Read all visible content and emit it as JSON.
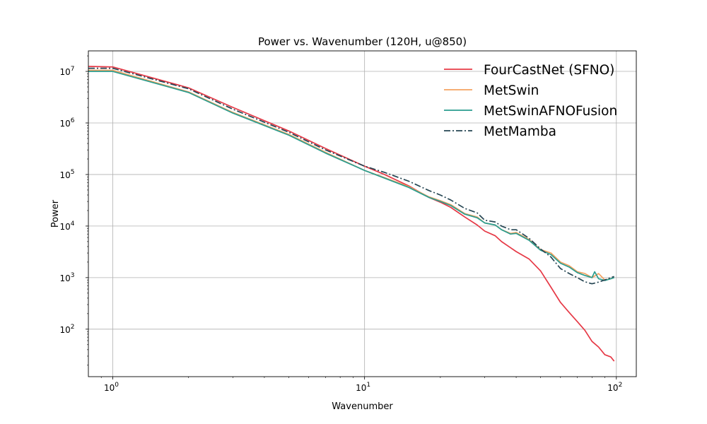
{
  "chart_data": {
    "type": "line",
    "title": "Power vs. Wavenumber (120H, u@850)",
    "xlabel": "Wavenumber",
    "ylabel": "Power",
    "xscale": "log",
    "yscale": "log",
    "xlim": [
      0.8,
      120
    ],
    "ylim": [
      12,
      25000000
    ],
    "grid": true,
    "legend_position": "top-right",
    "x_ticks": [
      {
        "value": 1,
        "base": "10",
        "exp": "0"
      },
      {
        "value": 10,
        "base": "10",
        "exp": "1"
      },
      {
        "value": 100,
        "base": "10",
        "exp": "2"
      }
    ],
    "y_ticks": [
      {
        "value": 100,
        "base": "10",
        "exp": "2"
      },
      {
        "value": 1000,
        "base": "10",
        "exp": "3"
      },
      {
        "value": 10000,
        "base": "10",
        "exp": "4"
      },
      {
        "value": 100000,
        "base": "10",
        "exp": "5"
      },
      {
        "value": 1000000,
        "base": "10",
        "exp": "6"
      },
      {
        "value": 10000000,
        "base": "10",
        "exp": "7"
      }
    ],
    "series": [
      {
        "name": "FourCastNet (SFNO)",
        "color": "#e63946",
        "dash": "solid",
        "x": [
          0.8,
          1,
          2,
          3,
          5,
          7,
          10,
          12,
          15,
          18,
          20,
          22,
          25,
          28,
          30,
          33,
          35,
          38,
          40,
          45,
          50,
          55,
          60,
          65,
          70,
          75,
          80,
          85,
          90,
          95,
          98
        ],
        "y": [
          12500000,
          12200000,
          4800000,
          2000000,
          700000,
          320000,
          145000,
          100000,
          60000,
          36000,
          29000,
          23000,
          15000,
          10500,
          8000,
          6500,
          5000,
          3800,
          3200,
          2300,
          1350,
          650,
          330,
          210,
          140,
          95,
          58,
          45,
          32,
          29,
          24
        ]
      },
      {
        "name": "MetSwin",
        "color": "#f4a261",
        "dash": "solid",
        "x": [
          0.8,
          1,
          2,
          3,
          5,
          7,
          10,
          12,
          15,
          18,
          20,
          22,
          25,
          28,
          30,
          33,
          35,
          38,
          40,
          45,
          50,
          55,
          60,
          65,
          70,
          75,
          80,
          85,
          90,
          95,
          98
        ],
        "y": [
          10500000,
          10500000,
          4000000,
          1600000,
          600000,
          270000,
          120000,
          87000,
          58000,
          37000,
          31000,
          26000,
          17500,
          15000,
          11500,
          10500,
          8500,
          7200,
          7500,
          5500,
          3500,
          3000,
          2000,
          1700,
          1300,
          1200,
          1000,
          1200,
          900,
          950,
          1000
        ]
      },
      {
        "name": "MetSwinAFNOFusion",
        "color": "#2a9d8f",
        "dash": "solid",
        "x": [
          0.8,
          1,
          2,
          3,
          5,
          7,
          10,
          12,
          15,
          18,
          20,
          22,
          25,
          28,
          30,
          33,
          35,
          38,
          40,
          45,
          50,
          55,
          60,
          65,
          70,
          75,
          80,
          82,
          85,
          90,
          95,
          98
        ],
        "y": [
          10000000,
          10000000,
          3900000,
          1550000,
          580000,
          260000,
          120000,
          85000,
          56000,
          36000,
          30000,
          25000,
          17000,
          14500,
          11500,
          10500,
          8500,
          7000,
          7200,
          5300,
          3400,
          2800,
          1900,
          1600,
          1250,
          1100,
          1000,
          1300,
          950,
          880,
          950,
          1000
        ]
      },
      {
        "name": "MetMamba",
        "color": "#264653",
        "dash": "dashdot",
        "x": [
          0.8,
          1,
          2,
          3,
          5,
          7,
          10,
          12,
          15,
          18,
          20,
          22,
          25,
          28,
          30,
          33,
          35,
          38,
          40,
          45,
          50,
          55,
          60,
          65,
          70,
          75,
          80,
          85,
          90,
          95,
          98
        ],
        "y": [
          11500000,
          11500000,
          4600000,
          1850000,
          660000,
          300000,
          145000,
          110000,
          74000,
          49000,
          40000,
          32000,
          22000,
          18000,
          13000,
          12000,
          10000,
          8500,
          8500,
          5800,
          3600,
          2500,
          1500,
          1200,
          1000,
          830,
          760,
          820,
          900,
          1000,
          1050
        ]
      }
    ]
  }
}
